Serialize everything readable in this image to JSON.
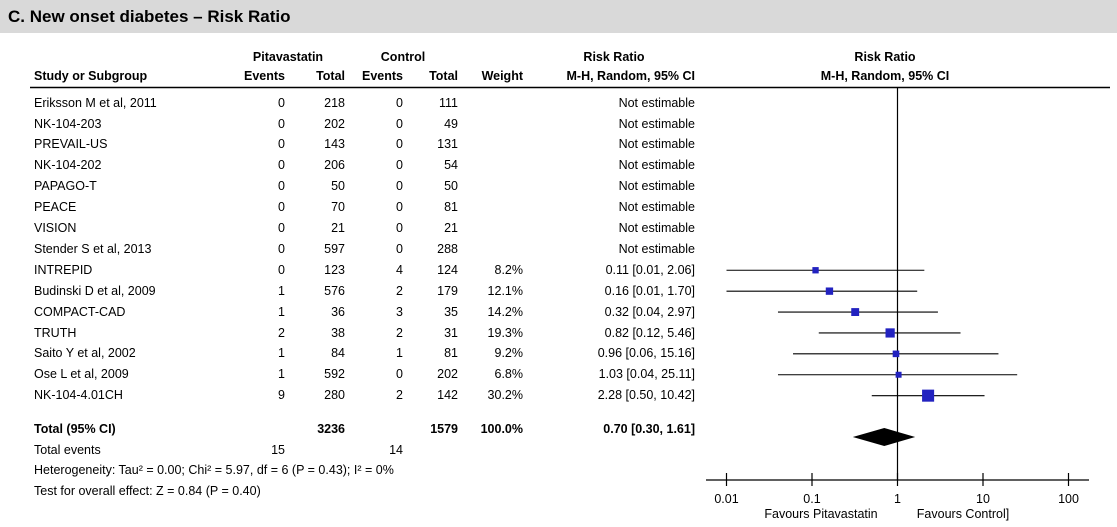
{
  "title": "C. New onset diabetes – Risk Ratio",
  "table": {
    "group1": "Pitavastatin",
    "group2": "Control",
    "col_study": "Study or Subgroup",
    "col_events": "Events",
    "col_total": "Total",
    "col_weight": "Weight",
    "col_risk_ratio": "Risk Ratio",
    "col_method": "M-H, Random, 95% CI"
  },
  "chart_data": {
    "type": "forest",
    "x_axis": {
      "scale": "log",
      "ticks": [
        0.01,
        0.1,
        1,
        10,
        100
      ],
      "tick_labels": [
        "0.01",
        "0.1",
        "1",
        "10",
        "100"
      ],
      "reference_line": 1
    },
    "footer_left": "Favours Pitavastatin",
    "footer_right": "Favours Control]",
    "studies": [
      {
        "name": "Eriksson M et al, 2011",
        "e1": "0",
        "t1": "218",
        "e2": "0",
        "t2": "111",
        "weight": "",
        "rr_text": "Not estimable",
        "estimable": false
      },
      {
        "name": "NK-104-203",
        "e1": "0",
        "t1": "202",
        "e2": "0",
        "t2": "49",
        "weight": "",
        "rr_text": "Not estimable",
        "estimable": false
      },
      {
        "name": "PREVAIL-US",
        "e1": "0",
        "t1": "143",
        "e2": "0",
        "t2": "131",
        "weight": "",
        "rr_text": "Not estimable",
        "estimable": false
      },
      {
        "name": "NK-104-202",
        "e1": "0",
        "t1": "206",
        "e2": "0",
        "t2": "54",
        "weight": "",
        "rr_text": "Not estimable",
        "estimable": false
      },
      {
        "name": "PAPAGO-T",
        "e1": "0",
        "t1": "50",
        "e2": "0",
        "t2": "50",
        "weight": "",
        "rr_text": "Not estimable",
        "estimable": false
      },
      {
        "name": "PEACE",
        "e1": "0",
        "t1": "70",
        "e2": "0",
        "t2": "81",
        "weight": "",
        "rr_text": "Not estimable",
        "estimable": false
      },
      {
        "name": "VISION",
        "e1": "0",
        "t1": "21",
        "e2": "0",
        "t2": "21",
        "weight": "",
        "rr_text": "Not estimable",
        "estimable": false
      },
      {
        "name": "Stender S et al, 2013",
        "e1": "0",
        "t1": "597",
        "e2": "0",
        "t2": "288",
        "weight": "",
        "rr_text": "Not estimable",
        "estimable": false
      },
      {
        "name": "INTREPID",
        "e1": "0",
        "t1": "123",
        "e2": "4",
        "t2": "124",
        "weight": "8.2%",
        "rr_text": "0.11 [0.01, 2.06]",
        "estimable": true,
        "rr": 0.11,
        "lo": 0.01,
        "hi": 2.06,
        "w": 8.2
      },
      {
        "name": "Budinski D et al, 2009",
        "e1": "1",
        "t1": "576",
        "e2": "2",
        "t2": "179",
        "weight": "12.1%",
        "rr_text": "0.16 [0.01, 1.70]",
        "estimable": true,
        "rr": 0.16,
        "lo": 0.01,
        "hi": 1.7,
        "w": 12.1
      },
      {
        "name": "COMPACT-CAD",
        "e1": "1",
        "t1": "36",
        "e2": "3",
        "t2": "35",
        "weight": "14.2%",
        "rr_text": "0.32 [0.04, 2.97]",
        "estimable": true,
        "rr": 0.32,
        "lo": 0.04,
        "hi": 2.97,
        "w": 14.2
      },
      {
        "name": "TRUTH",
        "e1": "2",
        "t1": "38",
        "e2": "2",
        "t2": "31",
        "weight": "19.3%",
        "rr_text": "0.82 [0.12, 5.46]",
        "estimable": true,
        "rr": 0.82,
        "lo": 0.12,
        "hi": 5.46,
        "w": 19.3
      },
      {
        "name": "Saito Y et al, 2002",
        "e1": "1",
        "t1": "84",
        "e2": "1",
        "t2": "81",
        "weight": "9.2%",
        "rr_text": "0.96 [0.06, 15.16]",
        "estimable": true,
        "rr": 0.96,
        "lo": 0.06,
        "hi": 15.16,
        "w": 9.2
      },
      {
        "name": "Ose L et al, 2009",
        "e1": "1",
        "t1": "592",
        "e2": "0",
        "t2": "202",
        "weight": "6.8%",
        "rr_text": "1.03 [0.04, 25.11]",
        "estimable": true,
        "rr": 1.03,
        "lo": 0.04,
        "hi": 25.11,
        "w": 6.8
      },
      {
        "name": "NK-104-4.01CH",
        "e1": "9",
        "t1": "280",
        "e2": "2",
        "t2": "142",
        "weight": "30.2%",
        "rr_text": "2.28 [0.50, 10.42]",
        "estimable": true,
        "rr": 2.28,
        "lo": 0.5,
        "hi": 10.42,
        "w": 30.2
      }
    ],
    "total": {
      "label": "Total (95% CI)",
      "t1": "3236",
      "t2": "1579",
      "weight": "100.0%",
      "rr_text": "0.70 [0.30, 1.61]",
      "rr": 0.7,
      "lo": 0.3,
      "hi": 1.61
    },
    "total_events": {
      "label": "Total events",
      "e1": "15",
      "e2": "14"
    },
    "heterogeneity": "Heterogeneity: Tau² = 0.00; Chi² = 5.97, df = 6 (P = 0.43); I² = 0%",
    "overall_effect": "Test for overall effect: Z = 0.84 (P = 0.40)"
  },
  "colors": {
    "marker_blue": "#2222C0",
    "diamond_black": "#000000",
    "titlebar_gray": "#d9d9d9",
    "line_black": "#000000"
  }
}
